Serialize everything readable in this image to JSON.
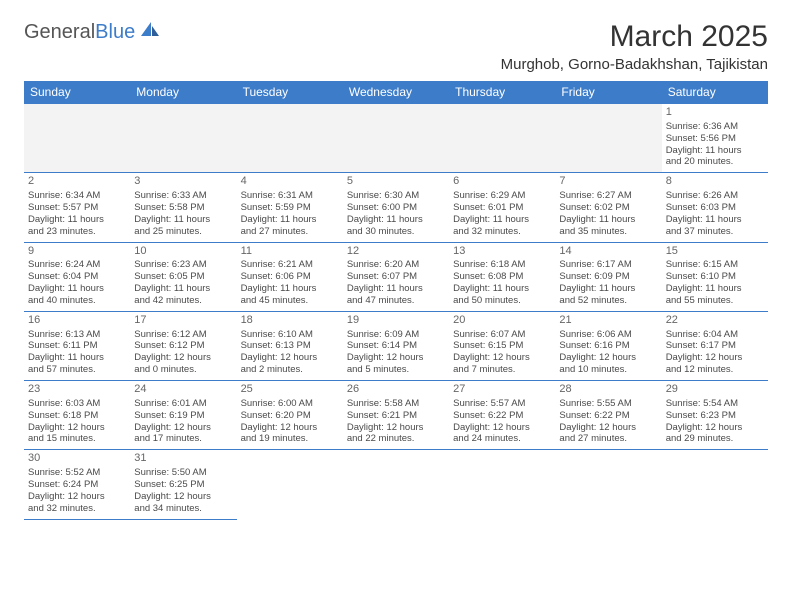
{
  "brand": {
    "part1": "General",
    "part2": "Blue"
  },
  "title": "March 2025",
  "location": "Murghob, Gorno-Badakhshan, Tajikistan",
  "colors": {
    "header_bg": "#3d7cc9",
    "header_text": "#ffffff",
    "grid_line": "#3d7cc9",
    "empty_bg": "#f3f3f3",
    "text": "#4a4a4a"
  },
  "weekdays": [
    "Sunday",
    "Monday",
    "Tuesday",
    "Wednesday",
    "Thursday",
    "Friday",
    "Saturday"
  ],
  "weeks": [
    [
      null,
      null,
      null,
      null,
      null,
      null,
      {
        "d": "1",
        "sr": "Sunrise: 6:36 AM",
        "ss": "Sunset: 5:56 PM",
        "dl1": "Daylight: 11 hours",
        "dl2": "and 20 minutes."
      }
    ],
    [
      {
        "d": "2",
        "sr": "Sunrise: 6:34 AM",
        "ss": "Sunset: 5:57 PM",
        "dl1": "Daylight: 11 hours",
        "dl2": "and 23 minutes."
      },
      {
        "d": "3",
        "sr": "Sunrise: 6:33 AM",
        "ss": "Sunset: 5:58 PM",
        "dl1": "Daylight: 11 hours",
        "dl2": "and 25 minutes."
      },
      {
        "d": "4",
        "sr": "Sunrise: 6:31 AM",
        "ss": "Sunset: 5:59 PM",
        "dl1": "Daylight: 11 hours",
        "dl2": "and 27 minutes."
      },
      {
        "d": "5",
        "sr": "Sunrise: 6:30 AM",
        "ss": "Sunset: 6:00 PM",
        "dl1": "Daylight: 11 hours",
        "dl2": "and 30 minutes."
      },
      {
        "d": "6",
        "sr": "Sunrise: 6:29 AM",
        "ss": "Sunset: 6:01 PM",
        "dl1": "Daylight: 11 hours",
        "dl2": "and 32 minutes."
      },
      {
        "d": "7",
        "sr": "Sunrise: 6:27 AM",
        "ss": "Sunset: 6:02 PM",
        "dl1": "Daylight: 11 hours",
        "dl2": "and 35 minutes."
      },
      {
        "d": "8",
        "sr": "Sunrise: 6:26 AM",
        "ss": "Sunset: 6:03 PM",
        "dl1": "Daylight: 11 hours",
        "dl2": "and 37 minutes."
      }
    ],
    [
      {
        "d": "9",
        "sr": "Sunrise: 6:24 AM",
        "ss": "Sunset: 6:04 PM",
        "dl1": "Daylight: 11 hours",
        "dl2": "and 40 minutes."
      },
      {
        "d": "10",
        "sr": "Sunrise: 6:23 AM",
        "ss": "Sunset: 6:05 PM",
        "dl1": "Daylight: 11 hours",
        "dl2": "and 42 minutes."
      },
      {
        "d": "11",
        "sr": "Sunrise: 6:21 AM",
        "ss": "Sunset: 6:06 PM",
        "dl1": "Daylight: 11 hours",
        "dl2": "and 45 minutes."
      },
      {
        "d": "12",
        "sr": "Sunrise: 6:20 AM",
        "ss": "Sunset: 6:07 PM",
        "dl1": "Daylight: 11 hours",
        "dl2": "and 47 minutes."
      },
      {
        "d": "13",
        "sr": "Sunrise: 6:18 AM",
        "ss": "Sunset: 6:08 PM",
        "dl1": "Daylight: 11 hours",
        "dl2": "and 50 minutes."
      },
      {
        "d": "14",
        "sr": "Sunrise: 6:17 AM",
        "ss": "Sunset: 6:09 PM",
        "dl1": "Daylight: 11 hours",
        "dl2": "and 52 minutes."
      },
      {
        "d": "15",
        "sr": "Sunrise: 6:15 AM",
        "ss": "Sunset: 6:10 PM",
        "dl1": "Daylight: 11 hours",
        "dl2": "and 55 minutes."
      }
    ],
    [
      {
        "d": "16",
        "sr": "Sunrise: 6:13 AM",
        "ss": "Sunset: 6:11 PM",
        "dl1": "Daylight: 11 hours",
        "dl2": "and 57 minutes."
      },
      {
        "d": "17",
        "sr": "Sunrise: 6:12 AM",
        "ss": "Sunset: 6:12 PM",
        "dl1": "Daylight: 12 hours",
        "dl2": "and 0 minutes."
      },
      {
        "d": "18",
        "sr": "Sunrise: 6:10 AM",
        "ss": "Sunset: 6:13 PM",
        "dl1": "Daylight: 12 hours",
        "dl2": "and 2 minutes."
      },
      {
        "d": "19",
        "sr": "Sunrise: 6:09 AM",
        "ss": "Sunset: 6:14 PM",
        "dl1": "Daylight: 12 hours",
        "dl2": "and 5 minutes."
      },
      {
        "d": "20",
        "sr": "Sunrise: 6:07 AM",
        "ss": "Sunset: 6:15 PM",
        "dl1": "Daylight: 12 hours",
        "dl2": "and 7 minutes."
      },
      {
        "d": "21",
        "sr": "Sunrise: 6:06 AM",
        "ss": "Sunset: 6:16 PM",
        "dl1": "Daylight: 12 hours",
        "dl2": "and 10 minutes."
      },
      {
        "d": "22",
        "sr": "Sunrise: 6:04 AM",
        "ss": "Sunset: 6:17 PM",
        "dl1": "Daylight: 12 hours",
        "dl2": "and 12 minutes."
      }
    ],
    [
      {
        "d": "23",
        "sr": "Sunrise: 6:03 AM",
        "ss": "Sunset: 6:18 PM",
        "dl1": "Daylight: 12 hours",
        "dl2": "and 15 minutes."
      },
      {
        "d": "24",
        "sr": "Sunrise: 6:01 AM",
        "ss": "Sunset: 6:19 PM",
        "dl1": "Daylight: 12 hours",
        "dl2": "and 17 minutes."
      },
      {
        "d": "25",
        "sr": "Sunrise: 6:00 AM",
        "ss": "Sunset: 6:20 PM",
        "dl1": "Daylight: 12 hours",
        "dl2": "and 19 minutes."
      },
      {
        "d": "26",
        "sr": "Sunrise: 5:58 AM",
        "ss": "Sunset: 6:21 PM",
        "dl1": "Daylight: 12 hours",
        "dl2": "and 22 minutes."
      },
      {
        "d": "27",
        "sr": "Sunrise: 5:57 AM",
        "ss": "Sunset: 6:22 PM",
        "dl1": "Daylight: 12 hours",
        "dl2": "and 24 minutes."
      },
      {
        "d": "28",
        "sr": "Sunrise: 5:55 AM",
        "ss": "Sunset: 6:22 PM",
        "dl1": "Daylight: 12 hours",
        "dl2": "and 27 minutes."
      },
      {
        "d": "29",
        "sr": "Sunrise: 5:54 AM",
        "ss": "Sunset: 6:23 PM",
        "dl1": "Daylight: 12 hours",
        "dl2": "and 29 minutes."
      }
    ],
    [
      {
        "d": "30",
        "sr": "Sunrise: 5:52 AM",
        "ss": "Sunset: 6:24 PM",
        "dl1": "Daylight: 12 hours",
        "dl2": "and 32 minutes."
      },
      {
        "d": "31",
        "sr": "Sunrise: 5:50 AM",
        "ss": "Sunset: 6:25 PM",
        "dl1": "Daylight: 12 hours",
        "dl2": "and 34 minutes."
      },
      "blank",
      "blank",
      "blank",
      "blank",
      "blank"
    ]
  ]
}
